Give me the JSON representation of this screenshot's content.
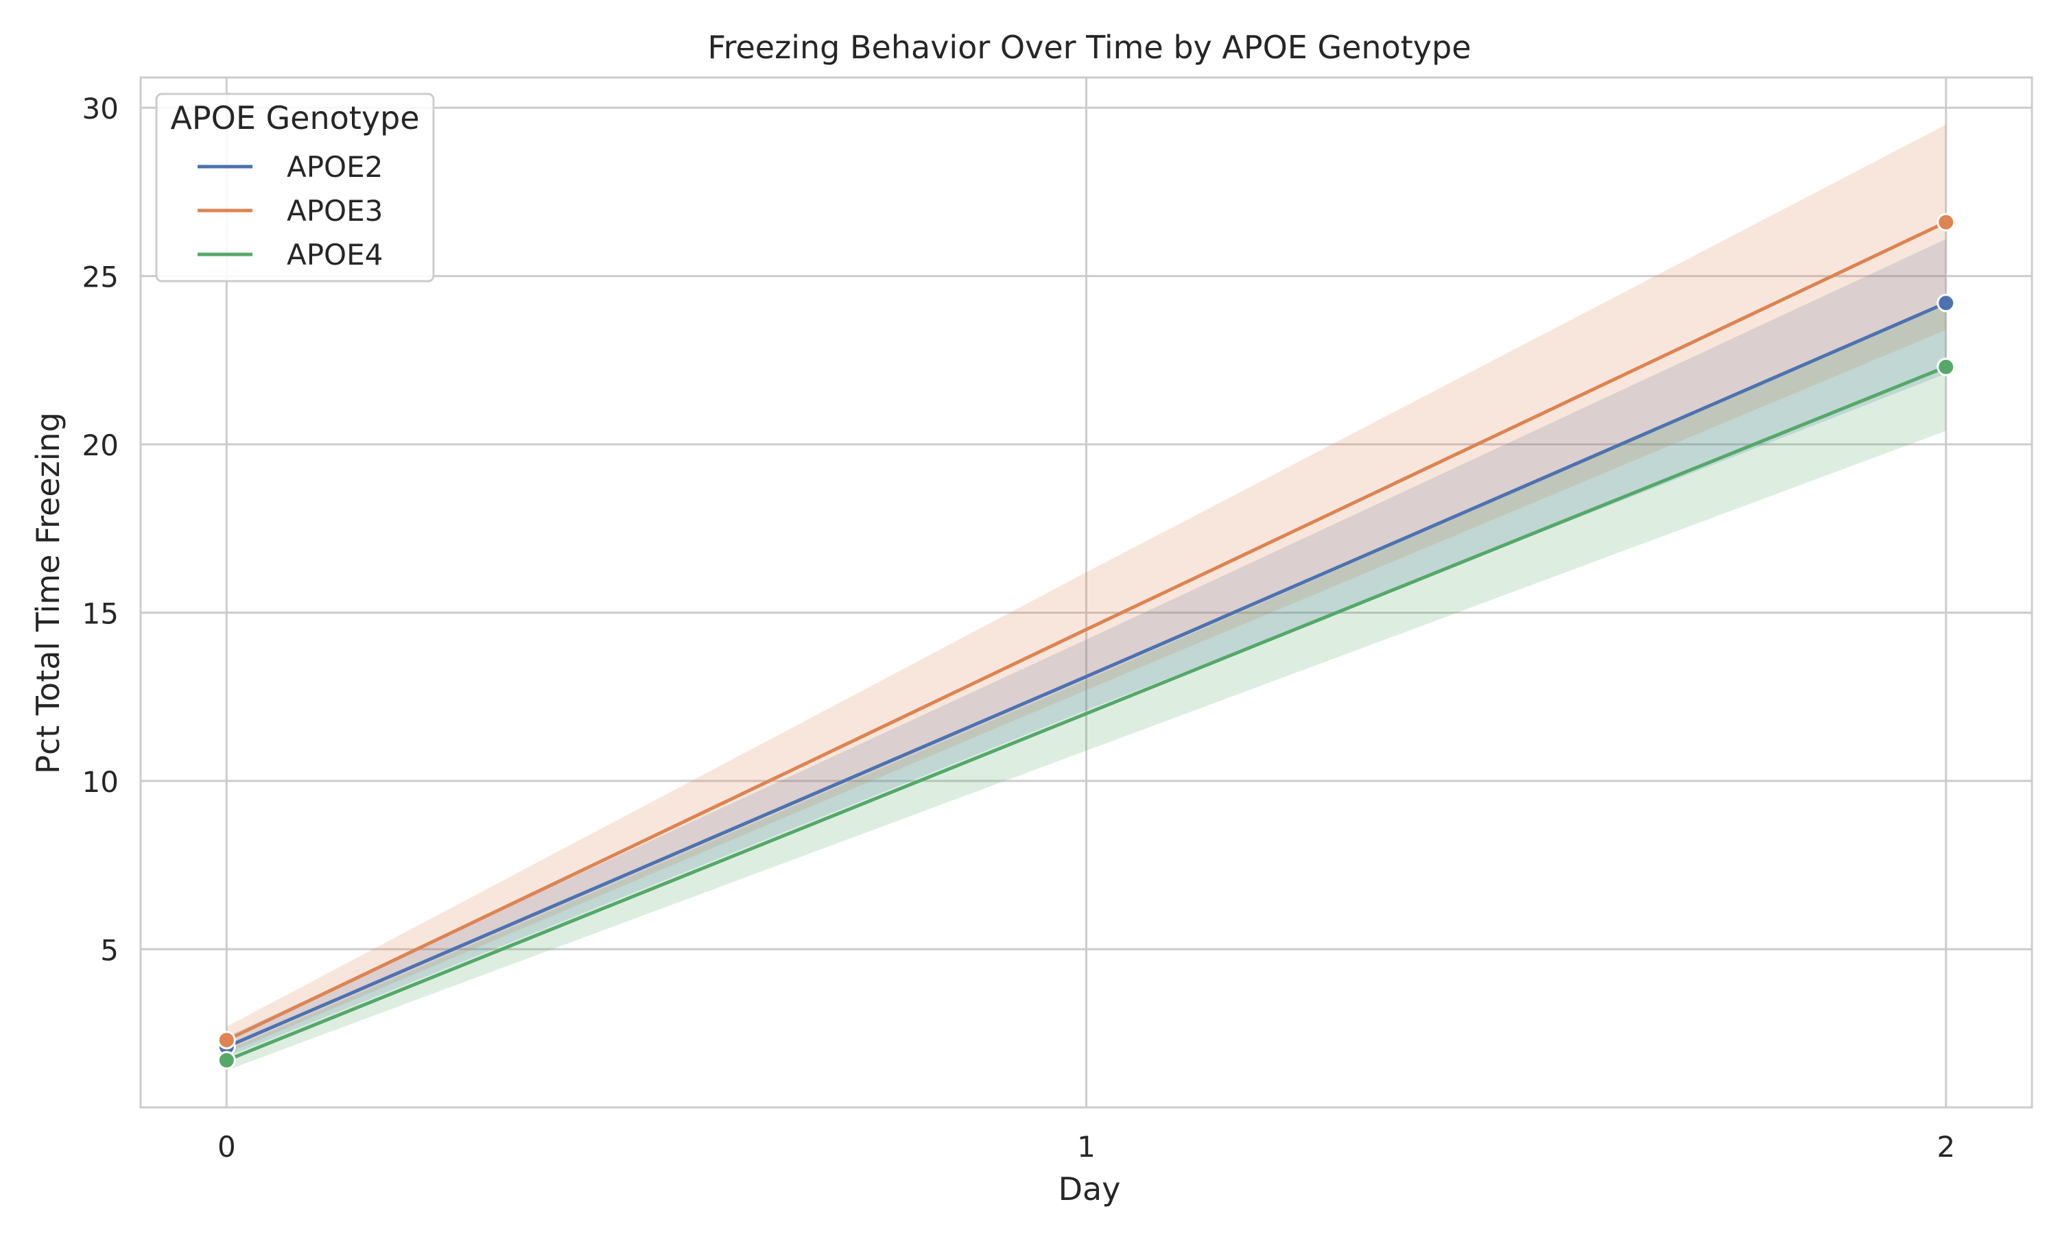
{
  "chart_data": {
    "type": "line",
    "title": "Freezing Behavior Over Time by APOE Genotype",
    "xlabel": "Day",
    "ylabel": "Pct Total Time Freezing",
    "x": [
      0,
      1,
      2
    ],
    "xticks": [
      "0",
      "1",
      "2"
    ],
    "yticks": [
      5,
      10,
      15,
      20,
      25,
      30
    ],
    "xlim": [
      -0.1,
      2.1
    ],
    "ylim": [
      0.3,
      30.9
    ],
    "grid": true,
    "legend": {
      "title": "APOE Genotype",
      "placement": "top-left"
    },
    "series": [
      {
        "name": "APOE2",
        "color": "#4c72b0",
        "markers": [
          0,
          2
        ],
        "values": [
          2.1,
          13.1,
          24.2
        ],
        "ci_low": [
          1.8,
          12.1,
          22.1
        ],
        "ci_high": [
          2.4,
          14.2,
          26.1
        ]
      },
      {
        "name": "APOE3",
        "color": "#dd8452",
        "markers": [
          0,
          2
        ],
        "values": [
          2.3,
          14.5,
          26.6
        ],
        "ci_low": [
          1.9,
          12.7,
          23.4
        ],
        "ci_high": [
          2.7,
          16.2,
          29.5
        ]
      },
      {
        "name": "APOE4",
        "color": "#55a868",
        "markers": [
          0,
          2
        ],
        "values": [
          1.7,
          12.0,
          22.3
        ],
        "ci_low": [
          1.4,
          10.9,
          20.4
        ],
        "ci_high": [
          2.0,
          13.0,
          24.2
        ]
      }
    ]
  }
}
